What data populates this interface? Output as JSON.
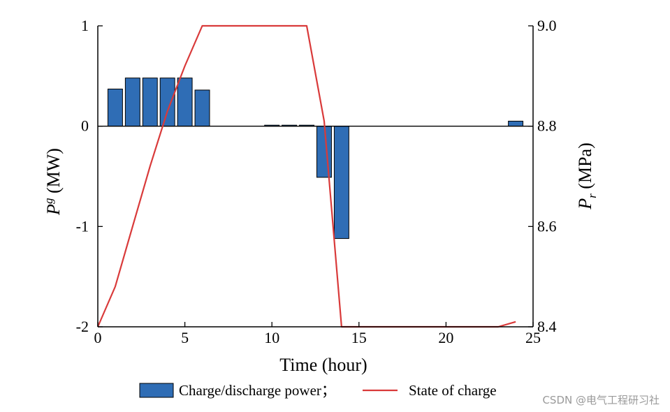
{
  "chart_data": {
    "type": "bar+line",
    "x": [
      1,
      2,
      3,
      4,
      5,
      6,
      7,
      8,
      9,
      10,
      11,
      12,
      13,
      14,
      15,
      16,
      17,
      18,
      19,
      20,
      21,
      22,
      23,
      24
    ],
    "series": [
      {
        "name": "Charge/discharge power",
        "type": "bar",
        "axis": "left",
        "color": "#2f6db5",
        "values": [
          0.37,
          0.48,
          0.48,
          0.48,
          0.48,
          0.36,
          0,
          0,
          0,
          0.01,
          0.01,
          0.01,
          -0.51,
          -1.12,
          0,
          0,
          0,
          0,
          0,
          0,
          0,
          0,
          0,
          0.05
        ]
      },
      {
        "name": "State of charge",
        "type": "line",
        "axis": "right",
        "color": "#d93a3a",
        "x": [
          0,
          1,
          2,
          3,
          4,
          5,
          6,
          7,
          8,
          9,
          10,
          11,
          11.9,
          12,
          13,
          14,
          15,
          16,
          17,
          18,
          19,
          20,
          21,
          22,
          23,
          24
        ],
        "values": [
          8.4,
          8.48,
          8.6,
          8.72,
          8.83,
          8.92,
          9.0,
          9.0,
          9.0,
          9.0,
          9.0,
          9.0,
          9.0,
          9.0,
          8.81,
          8.4,
          8.4,
          8.4,
          8.4,
          8.4,
          8.4,
          8.4,
          8.4,
          8.4,
          8.4,
          8.41
        ]
      }
    ],
    "xlabel": "Time (hour)",
    "xlim": [
      0,
      25
    ],
    "xticks": [
      "0",
      "5",
      "10",
      "15",
      "20",
      "25"
    ],
    "ylabel_left": {
      "main": "P",
      "sup": "g",
      "rest": " (MW)"
    },
    "ylim_left": [
      -2,
      1
    ],
    "yticks_left": [
      "-2",
      "-1",
      "0",
      "1"
    ],
    "ylabel_right": {
      "main": "P",
      "sub": "r",
      "rest": " (MPa)"
    },
    "ylim_right": [
      8.4,
      9.0
    ],
    "yticks_right": [
      "8.4",
      "8.6",
      "8.8",
      "9.0"
    ],
    "legend_position": "bottom",
    "legend": [
      "Charge/discharge power；",
      "State of charge"
    ],
    "grid": false
  },
  "watermark": "CSDN @电气工程研习社"
}
